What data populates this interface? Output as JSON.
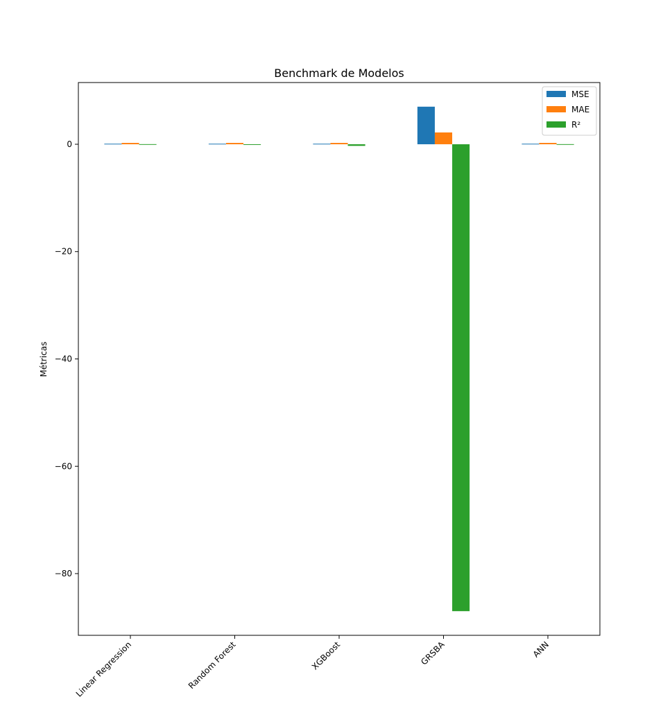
{
  "chart_data": {
    "type": "bar",
    "title": "Benchmark de Modelos",
    "xlabel": "",
    "ylabel": "Métricas",
    "categories": [
      "Linear Regression",
      "Random Forest",
      "XGBoost",
      "GRSBA",
      "ANN"
    ],
    "series": [
      {
        "name": "MSE",
        "color": "#1f77b4",
        "values": [
          0.1,
          0.1,
          0.1,
          7.0,
          0.1
        ]
      },
      {
        "name": "MAE",
        "color": "#ff7f0e",
        "values": [
          0.25,
          0.25,
          0.25,
          2.2,
          0.25
        ]
      },
      {
        "name": "R²",
        "color": "#2ca02c",
        "values": [
          0.02,
          -0.1,
          -0.3,
          -87.0,
          0.02
        ]
      }
    ],
    "ylim": [
      -91.5,
      11.5
    ],
    "yticks": [
      0,
      -20,
      -40,
      -60,
      -80
    ],
    "ytick_labels": [
      "0",
      "−20",
      "−40",
      "−60",
      "−80"
    ],
    "legend_position": "top-right",
    "grid": false
  }
}
